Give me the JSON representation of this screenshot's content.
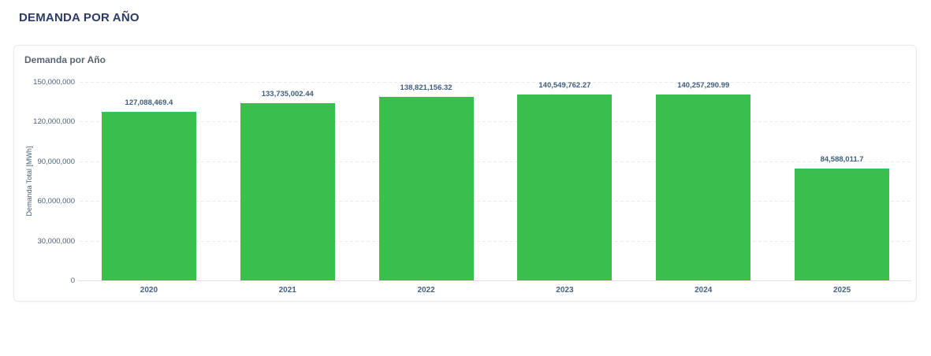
{
  "page": {
    "title": "DEMANDA POR AÑO"
  },
  "card": {
    "header": "Demanda por Año"
  },
  "chart_data": {
    "type": "bar",
    "title": "Demanda por Año",
    "categories": [
      "2020",
      "2021",
      "2022",
      "2023",
      "2024",
      "2025"
    ],
    "values": [
      127088469.4,
      133735002.44,
      138821156.32,
      140549762.27,
      140257290.99,
      84588011.7
    ],
    "value_labels": [
      "127,088,469.4",
      "133,735,002.44",
      "138,821,156.32",
      "140,549,762.27",
      "140,257,290.99",
      "84,588,011.7"
    ],
    "xlabel": "",
    "ylabel": "Demanda Total  [MWh]",
    "ylim": [
      0,
      150000000
    ],
    "yticks": [
      {
        "value": 0,
        "label": "0"
      },
      {
        "value": 30000000,
        "label": "30,000,000"
      },
      {
        "value": 60000000,
        "label": "60,000,000"
      },
      {
        "value": 90000000,
        "label": "90,000,000"
      },
      {
        "value": 120000000,
        "label": "120,000,000"
      },
      {
        "value": 150000000,
        "label": "150,000,000"
      }
    ],
    "grid": "horizontal-dashed",
    "legend": "none",
    "bar_color": "#3abf4e"
  }
}
